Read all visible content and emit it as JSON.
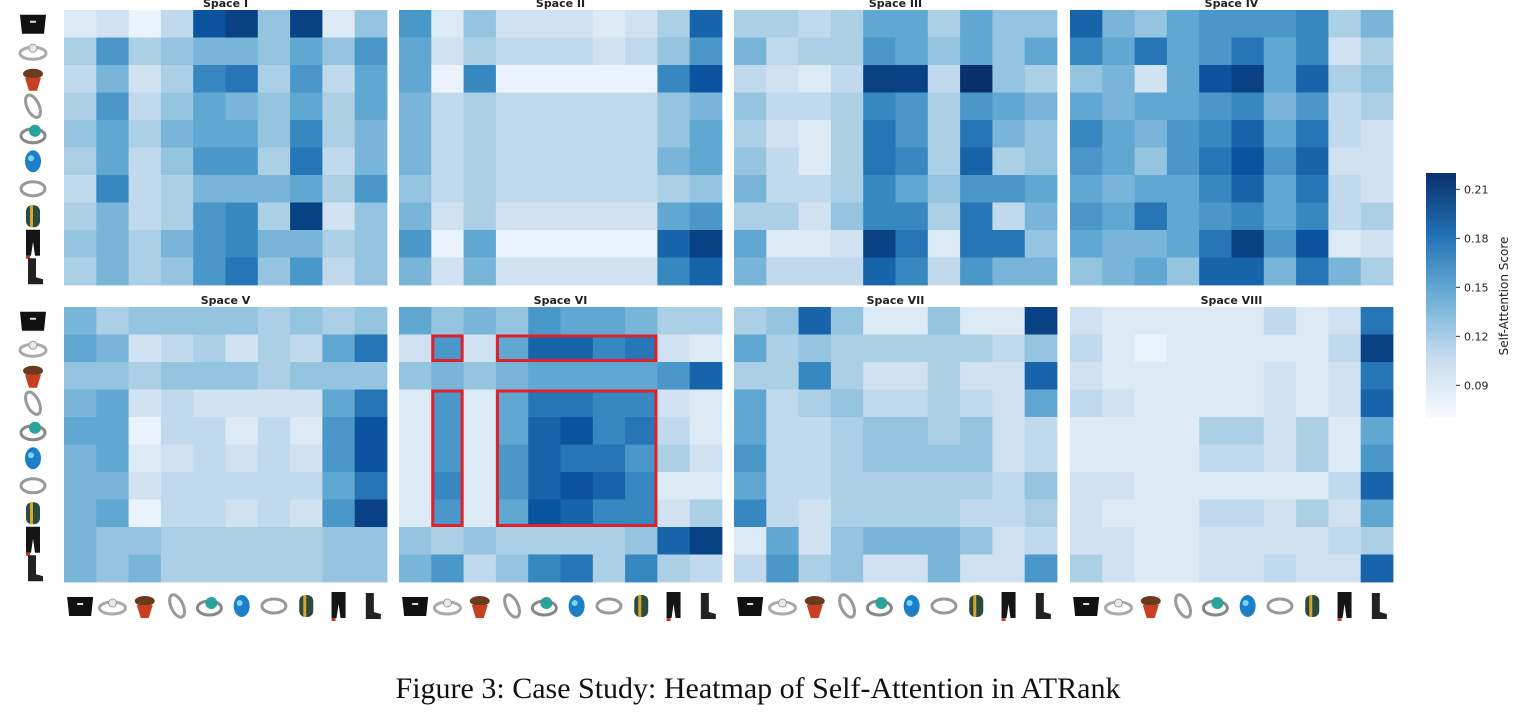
{
  "caption": "Figure 3: Case Study: Heatmap of Self-Attention in ATRank",
  "colors": {
    "low": "#f7fbff",
    "high": "#08306b",
    "highlight": "#e0202a"
  },
  "item_icons": [
    "black-handbag-icon",
    "diamond-ring-icon",
    "red-scarf-hat-icon",
    "silver-ring-icon",
    "turquoise-bead-ring-icon",
    "blue-glass-bead-icon",
    "silver-band-ring-icon",
    "striped-bead-charm-icon",
    "black-pants-icon",
    "black-boots-icon"
  ],
  "chart_data": {
    "type": "heatmap",
    "colorbar": {
      "label": "Self-Attention Score",
      "ticks": [
        0.09,
        0.12,
        0.15,
        0.18,
        0.21
      ],
      "range": [
        0.07,
        0.22
      ]
    },
    "panels": [
      {
        "title": "Space I",
        "values": [
          [
            0.09,
            0.1,
            0.08,
            0.11,
            0.2,
            0.21,
            0.13,
            0.21,
            0.09,
            0.13
          ],
          [
            0.12,
            0.16,
            0.12,
            0.13,
            0.14,
            0.14,
            0.13,
            0.15,
            0.13,
            0.16
          ],
          [
            0.11,
            0.14,
            0.1,
            0.12,
            0.17,
            0.18,
            0.12,
            0.16,
            0.11,
            0.15
          ],
          [
            0.12,
            0.16,
            0.11,
            0.13,
            0.15,
            0.14,
            0.13,
            0.15,
            0.12,
            0.15
          ],
          [
            0.13,
            0.15,
            0.12,
            0.14,
            0.15,
            0.15,
            0.13,
            0.17,
            0.12,
            0.14
          ],
          [
            0.12,
            0.15,
            0.11,
            0.13,
            0.16,
            0.16,
            0.12,
            0.18,
            0.11,
            0.14
          ],
          [
            0.11,
            0.17,
            0.11,
            0.12,
            0.14,
            0.14,
            0.14,
            0.15,
            0.12,
            0.16
          ],
          [
            0.12,
            0.14,
            0.11,
            0.12,
            0.16,
            0.17,
            0.12,
            0.21,
            0.1,
            0.13
          ],
          [
            0.13,
            0.14,
            0.12,
            0.14,
            0.16,
            0.17,
            0.14,
            0.14,
            0.12,
            0.13
          ],
          [
            0.12,
            0.14,
            0.12,
            0.13,
            0.16,
            0.18,
            0.13,
            0.16,
            0.11,
            0.13
          ]
        ]
      },
      {
        "title": "Space II",
        "values": [
          [
            0.16,
            0.09,
            0.13,
            0.1,
            0.1,
            0.1,
            0.09,
            0.1,
            0.12,
            0.19
          ],
          [
            0.15,
            0.1,
            0.12,
            0.11,
            0.11,
            0.11,
            0.1,
            0.11,
            0.13,
            0.16
          ],
          [
            0.15,
            0.08,
            0.17,
            0.08,
            0.08,
            0.08,
            0.08,
            0.08,
            0.17,
            0.2
          ],
          [
            0.14,
            0.11,
            0.12,
            0.11,
            0.11,
            0.11,
            0.11,
            0.11,
            0.13,
            0.14
          ],
          [
            0.14,
            0.11,
            0.12,
            0.11,
            0.11,
            0.11,
            0.11,
            0.11,
            0.13,
            0.15
          ],
          [
            0.14,
            0.11,
            0.12,
            0.11,
            0.11,
            0.11,
            0.11,
            0.11,
            0.14,
            0.15
          ],
          [
            0.13,
            0.11,
            0.12,
            0.11,
            0.11,
            0.11,
            0.11,
            0.11,
            0.12,
            0.13
          ],
          [
            0.14,
            0.1,
            0.12,
            0.1,
            0.1,
            0.1,
            0.1,
            0.1,
            0.15,
            0.16
          ],
          [
            0.16,
            0.08,
            0.15,
            0.08,
            0.08,
            0.08,
            0.08,
            0.08,
            0.19,
            0.21
          ],
          [
            0.14,
            0.1,
            0.14,
            0.1,
            0.1,
            0.1,
            0.1,
            0.1,
            0.17,
            0.19
          ]
        ]
      },
      {
        "title": "Space III",
        "values": [
          [
            0.12,
            0.12,
            0.11,
            0.12,
            0.15,
            0.15,
            0.12,
            0.15,
            0.13,
            0.13
          ],
          [
            0.14,
            0.11,
            0.12,
            0.12,
            0.16,
            0.15,
            0.13,
            0.15,
            0.13,
            0.15
          ],
          [
            0.11,
            0.1,
            0.09,
            0.11,
            0.21,
            0.21,
            0.11,
            0.22,
            0.13,
            0.12
          ],
          [
            0.13,
            0.11,
            0.11,
            0.12,
            0.17,
            0.16,
            0.12,
            0.16,
            0.15,
            0.14
          ],
          [
            0.12,
            0.1,
            0.09,
            0.12,
            0.18,
            0.16,
            0.12,
            0.18,
            0.14,
            0.13
          ],
          [
            0.13,
            0.11,
            0.09,
            0.12,
            0.18,
            0.17,
            0.12,
            0.19,
            0.12,
            0.13
          ],
          [
            0.14,
            0.11,
            0.11,
            0.12,
            0.17,
            0.15,
            0.13,
            0.16,
            0.16,
            0.15
          ],
          [
            0.12,
            0.12,
            0.1,
            0.13,
            0.17,
            0.17,
            0.12,
            0.18,
            0.11,
            0.14
          ],
          [
            0.15,
            0.09,
            0.09,
            0.1,
            0.21,
            0.18,
            0.09,
            0.18,
            0.18,
            0.13
          ],
          [
            0.14,
            0.11,
            0.11,
            0.11,
            0.19,
            0.17,
            0.11,
            0.16,
            0.14,
            0.14
          ]
        ]
      },
      {
        "title": "Space IV",
        "values": [
          [
            0.19,
            0.14,
            0.13,
            0.15,
            0.16,
            0.16,
            0.16,
            0.17,
            0.12,
            0.14
          ],
          [
            0.17,
            0.15,
            0.18,
            0.15,
            0.16,
            0.18,
            0.15,
            0.17,
            0.1,
            0.12
          ],
          [
            0.13,
            0.14,
            0.1,
            0.15,
            0.2,
            0.21,
            0.15,
            0.19,
            0.12,
            0.13
          ],
          [
            0.15,
            0.14,
            0.15,
            0.15,
            0.16,
            0.17,
            0.14,
            0.16,
            0.11,
            0.12
          ],
          [
            0.17,
            0.15,
            0.14,
            0.16,
            0.17,
            0.19,
            0.15,
            0.18,
            0.11,
            0.1
          ],
          [
            0.16,
            0.15,
            0.13,
            0.16,
            0.18,
            0.2,
            0.16,
            0.19,
            0.1,
            0.1
          ],
          [
            0.15,
            0.14,
            0.15,
            0.15,
            0.17,
            0.19,
            0.15,
            0.18,
            0.11,
            0.1
          ],
          [
            0.16,
            0.15,
            0.18,
            0.15,
            0.16,
            0.17,
            0.15,
            0.17,
            0.11,
            0.12
          ],
          [
            0.15,
            0.14,
            0.14,
            0.15,
            0.18,
            0.21,
            0.16,
            0.2,
            0.09,
            0.1
          ],
          [
            0.13,
            0.14,
            0.15,
            0.13,
            0.19,
            0.19,
            0.14,
            0.18,
            0.14,
            0.12
          ]
        ]
      },
      {
        "title": "Space V",
        "values": [
          [
            0.14,
            0.12,
            0.13,
            0.13,
            0.13,
            0.13,
            0.12,
            0.13,
            0.12,
            0.13
          ],
          [
            0.15,
            0.14,
            0.1,
            0.11,
            0.12,
            0.1,
            0.12,
            0.11,
            0.15,
            0.18
          ],
          [
            0.13,
            0.13,
            0.12,
            0.13,
            0.13,
            0.13,
            0.12,
            0.13,
            0.13,
            0.13
          ],
          [
            0.14,
            0.15,
            0.1,
            0.11,
            0.1,
            0.1,
            0.1,
            0.1,
            0.15,
            0.18
          ],
          [
            0.15,
            0.15,
            0.08,
            0.11,
            0.11,
            0.09,
            0.11,
            0.09,
            0.16,
            0.2
          ],
          [
            0.14,
            0.15,
            0.09,
            0.1,
            0.11,
            0.1,
            0.11,
            0.1,
            0.16,
            0.2
          ],
          [
            0.14,
            0.14,
            0.1,
            0.11,
            0.11,
            0.11,
            0.11,
            0.11,
            0.15,
            0.18
          ],
          [
            0.14,
            0.15,
            0.08,
            0.11,
            0.11,
            0.1,
            0.11,
            0.1,
            0.16,
            0.21
          ],
          [
            0.14,
            0.13,
            0.13,
            0.12,
            0.12,
            0.12,
            0.12,
            0.12,
            0.13,
            0.13
          ],
          [
            0.14,
            0.13,
            0.14,
            0.12,
            0.12,
            0.12,
            0.12,
            0.12,
            0.13,
            0.13
          ]
        ]
      },
      {
        "title": "Space VI",
        "values": [
          [
            0.15,
            0.13,
            0.14,
            0.13,
            0.16,
            0.15,
            0.15,
            0.14,
            0.12,
            0.12
          ],
          [
            0.1,
            0.16,
            0.1,
            0.15,
            0.19,
            0.19,
            0.17,
            0.18,
            0.1,
            0.09
          ],
          [
            0.13,
            0.14,
            0.13,
            0.14,
            0.15,
            0.15,
            0.15,
            0.15,
            0.16,
            0.19
          ],
          [
            0.09,
            0.16,
            0.09,
            0.15,
            0.18,
            0.18,
            0.17,
            0.17,
            0.1,
            0.09
          ],
          [
            0.09,
            0.16,
            0.09,
            0.15,
            0.19,
            0.2,
            0.17,
            0.18,
            0.11,
            0.09
          ],
          [
            0.09,
            0.16,
            0.09,
            0.16,
            0.19,
            0.18,
            0.18,
            0.16,
            0.12,
            0.1
          ],
          [
            0.09,
            0.17,
            0.09,
            0.16,
            0.19,
            0.2,
            0.19,
            0.17,
            0.09,
            0.09
          ],
          [
            0.09,
            0.16,
            0.09,
            0.15,
            0.2,
            0.19,
            0.17,
            0.17,
            0.1,
            0.12
          ],
          [
            0.13,
            0.12,
            0.13,
            0.12,
            0.12,
            0.12,
            0.12,
            0.13,
            0.19,
            0.21
          ],
          [
            0.14,
            0.16,
            0.11,
            0.13,
            0.17,
            0.18,
            0.12,
            0.17,
            0.12,
            0.11
          ]
        ]
      },
      {
        "title": "Space VII",
        "values": [
          [
            0.12,
            0.13,
            0.19,
            0.13,
            0.09,
            0.09,
            0.13,
            0.09,
            0.09,
            0.21
          ],
          [
            0.15,
            0.12,
            0.13,
            0.12,
            0.12,
            0.12,
            0.12,
            0.12,
            0.11,
            0.13
          ],
          [
            0.12,
            0.12,
            0.17,
            0.12,
            0.1,
            0.1,
            0.12,
            0.1,
            0.1,
            0.19
          ],
          [
            0.15,
            0.11,
            0.12,
            0.13,
            0.11,
            0.11,
            0.12,
            0.11,
            0.1,
            0.15
          ],
          [
            0.15,
            0.11,
            0.11,
            0.12,
            0.13,
            0.13,
            0.12,
            0.13,
            0.1,
            0.11
          ],
          [
            0.16,
            0.11,
            0.11,
            0.12,
            0.13,
            0.13,
            0.13,
            0.13,
            0.1,
            0.11
          ],
          [
            0.15,
            0.11,
            0.11,
            0.12,
            0.12,
            0.12,
            0.12,
            0.12,
            0.11,
            0.13
          ],
          [
            0.17,
            0.11,
            0.1,
            0.12,
            0.12,
            0.12,
            0.12,
            0.11,
            0.11,
            0.12
          ],
          [
            0.09,
            0.15,
            0.1,
            0.13,
            0.14,
            0.14,
            0.14,
            0.13,
            0.1,
            0.11
          ],
          [
            0.11,
            0.16,
            0.12,
            0.13,
            0.1,
            0.1,
            0.14,
            0.1,
            0.1,
            0.16
          ]
        ]
      },
      {
        "title": "Space VIII",
        "values": [
          [
            0.1,
            0.09,
            0.09,
            0.09,
            0.09,
            0.09,
            0.11,
            0.09,
            0.1,
            0.18
          ],
          [
            0.11,
            0.09,
            0.08,
            0.09,
            0.09,
            0.09,
            0.09,
            0.09,
            0.11,
            0.21
          ],
          [
            0.1,
            0.09,
            0.09,
            0.09,
            0.09,
            0.09,
            0.1,
            0.09,
            0.1,
            0.18
          ],
          [
            0.11,
            0.1,
            0.09,
            0.09,
            0.09,
            0.09,
            0.1,
            0.09,
            0.1,
            0.19
          ],
          [
            0.09,
            0.09,
            0.09,
            0.09,
            0.12,
            0.12,
            0.1,
            0.12,
            0.09,
            0.15
          ],
          [
            0.09,
            0.09,
            0.09,
            0.09,
            0.11,
            0.11,
            0.1,
            0.12,
            0.09,
            0.16
          ],
          [
            0.1,
            0.1,
            0.09,
            0.09,
            0.09,
            0.09,
            0.09,
            0.09,
            0.11,
            0.19
          ],
          [
            0.1,
            0.09,
            0.09,
            0.09,
            0.11,
            0.11,
            0.1,
            0.12,
            0.1,
            0.15
          ],
          [
            0.1,
            0.1,
            0.09,
            0.09,
            0.1,
            0.1,
            0.1,
            0.1,
            0.11,
            0.12
          ],
          [
            0.12,
            0.1,
            0.09,
            0.09,
            0.1,
            0.1,
            0.11,
            0.1,
            0.1,
            0.19
          ]
        ]
      }
    ],
    "highlights": [
      {
        "panel": "Space VI",
        "rows": [
          1,
          1
        ],
        "cols": [
          1,
          1
        ]
      },
      {
        "panel": "Space VI",
        "rows": [
          1,
          1
        ],
        "cols": [
          3,
          7
        ]
      },
      {
        "panel": "Space VI",
        "rows": [
          3,
          7
        ],
        "cols": [
          1,
          1
        ]
      },
      {
        "panel": "Space VI",
        "rows": [
          3,
          7
        ],
        "cols": [
          3,
          7
        ]
      }
    ]
  }
}
